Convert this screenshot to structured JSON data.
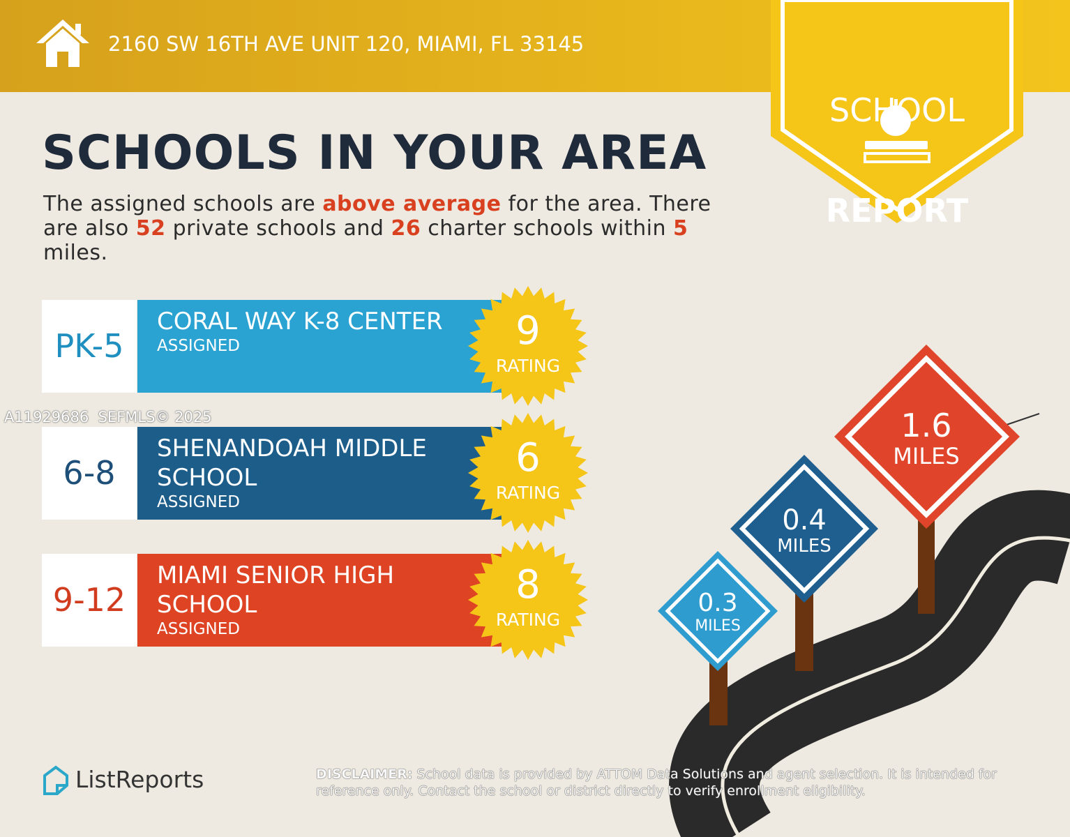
{
  "header": {
    "address": "2160 SW 16TH AVE UNIT 120, MIAMI, FL 33145"
  },
  "badge": {
    "line1": "SCHOOL",
    "line2": "REPORT"
  },
  "title": "SCHOOLS IN YOUR AREA",
  "summary": {
    "parts": [
      "The assigned schools are ",
      "above average",
      " for the area. There are also ",
      "52",
      " private schools and ",
      "26",
      " charter schools within ",
      "5",
      " miles."
    ]
  },
  "schools": [
    {
      "grades": "PK-5",
      "name": "CORAL WAY K-8 CENTER",
      "status": "ASSIGNED",
      "rating": 9,
      "rating_label": "RATING"
    },
    {
      "grades": "6-8",
      "name": "SHENANDOAH MIDDLE SCHOOL",
      "status": "ASSIGNED",
      "rating": 6,
      "rating_label": "RATING"
    },
    {
      "grades": "9-12",
      "name": "MIAMI SENIOR HIGH SCHOOL",
      "status": "ASSIGNED",
      "rating": 8,
      "rating_label": "RATING"
    }
  ],
  "watermark": "A11929686  SEFMLS© 2025",
  "signs": [
    {
      "distance": 1.6,
      "unit": "MILES"
    },
    {
      "distance": 0.4,
      "unit": "MILES"
    },
    {
      "distance": 0.3,
      "unit": "MILES"
    }
  ],
  "brand": "ListReports",
  "disclaimer": {
    "label": "DISCLAIMER:",
    "text": " School data is provided by ATTOM Data Solutions and agent selection. It is intended for reference only. Contact the school or district directly to verify enrollment eligibility."
  }
}
